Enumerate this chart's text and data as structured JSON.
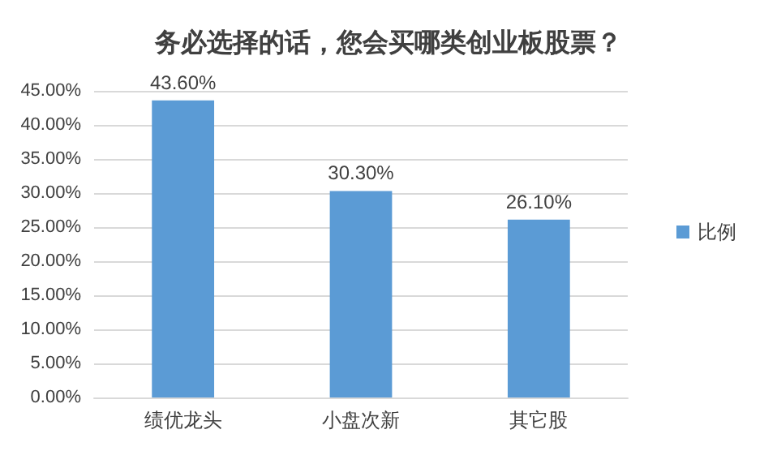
{
  "chart_data": {
    "type": "bar",
    "title": "务必选择的话，您会买哪类创业板股票？",
    "categories": [
      "绩优龙头",
      "小盘次新",
      "其它股"
    ],
    "series": [
      {
        "name": "比例",
        "color": "#5b9bd5",
        "values": [
          43.6,
          30.3,
          26.1
        ],
        "value_labels": [
          "43.60%",
          "30.30%",
          "26.10%"
        ]
      }
    ],
    "ylim": [
      0,
      45
    ],
    "yticks": [
      {
        "value": 0,
        "label": "0.00%"
      },
      {
        "value": 5,
        "label": "5.00%"
      },
      {
        "value": 10,
        "label": "10.00%"
      },
      {
        "value": 15,
        "label": "15.00%"
      },
      {
        "value": 20,
        "label": "20.00%"
      },
      {
        "value": 25,
        "label": "25.00%"
      },
      {
        "value": 30,
        "label": "30.00%"
      },
      {
        "value": 35,
        "label": "35.00%"
      },
      {
        "value": 40,
        "label": "40.00%"
      },
      {
        "value": 45,
        "label": "45.00%"
      }
    ],
    "grid": "y",
    "legend": "right"
  }
}
